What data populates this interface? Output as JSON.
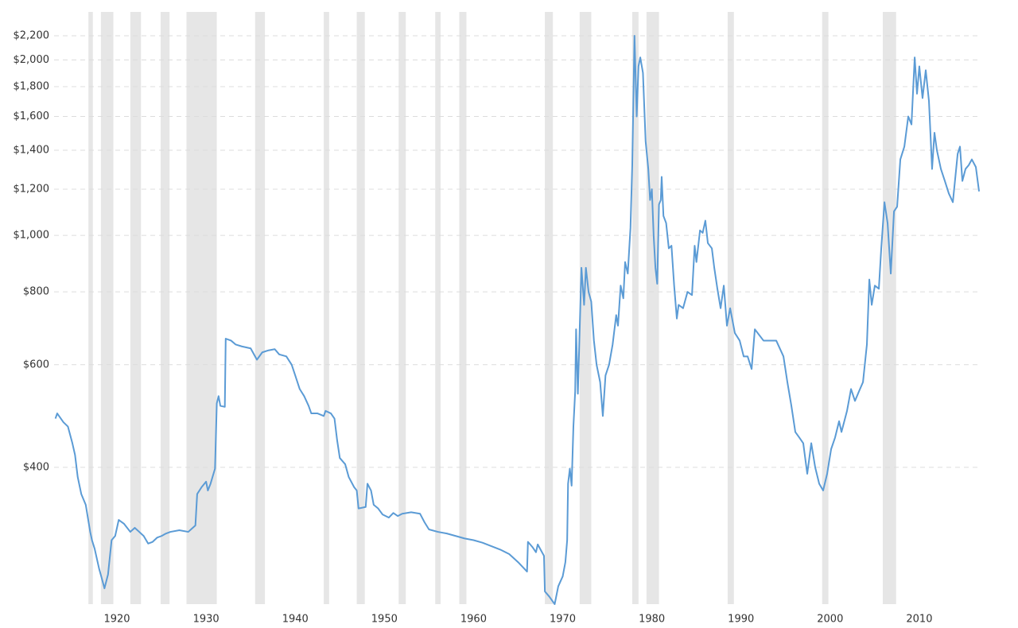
{
  "chart_data": {
    "type": "line",
    "log_scale": true,
    "grid": true,
    "series": [
      {
        "color": "#5b9bd5",
        "x": [
          1913.1,
          1913.3,
          1914.0,
          1914.5,
          1915.0,
          1915.3,
          1915.6,
          1916.0,
          1916.5,
          1917.0,
          1917.2,
          1917.5,
          1918.0,
          1918.3,
          1918.6,
          1919.0,
          1919.4,
          1919.8,
          1920.2,
          1920.8,
          1921.5,
          1922.0,
          1922.5,
          1923.0,
          1923.5,
          1924.0,
          1924.5,
          1925.0,
          1925.5,
          1926.0,
          1927.0,
          1928.0,
          1928.8,
          1929.0,
          1929.5,
          1930.0,
          1930.2,
          1930.5,
          1931.0,
          1931.2,
          1931.4,
          1931.6,
          1932.1,
          1932.2,
          1932.8,
          1933.3,
          1934.0,
          1935.0,
          1935.7,
          1936.3,
          1937.0,
          1937.7,
          1938.2,
          1939.0,
          1939.6,
          1940.0,
          1940.5,
          1941.0,
          1941.5,
          1941.8,
          1942.5,
          1943.2,
          1943.4,
          1944.0,
          1944.4,
          1944.7,
          1945.0,
          1945.6,
          1946.0,
          1946.6,
          1946.9,
          1947.1,
          1947.9,
          1948.1,
          1948.5,
          1948.8,
          1949.3,
          1949.8,
          1950.5,
          1951.0,
          1951.5,
          1952.0,
          1953.0,
          1954.0,
          1954.5,
          1955.0,
          1956.0,
          1957.0,
          1958.0,
          1959.0,
          1960.0,
          1961.0,
          1962.0,
          1963.0,
          1964.0,
          1965.0,
          1966.0,
          1966.1,
          1966.6,
          1967.0,
          1967.2,
          1967.9,
          1968.0,
          1968.5,
          1969.1,
          1969.5,
          1970.0,
          1970.3,
          1970.5,
          1970.6,
          1970.8,
          1971.0,
          1971.2,
          1971.4,
          1971.5,
          1971.7,
          1972.1,
          1972.4,
          1972.6,
          1972.9,
          1973.2,
          1973.5,
          1973.8,
          1974.2,
          1974.5,
          1974.8,
          1975.2,
          1975.6,
          1976.0,
          1976.2,
          1976.5,
          1976.8,
          1977.0,
          1977.3,
          1977.6,
          1977.8,
          1978.05,
          1978.3,
          1978.5,
          1978.7,
          1979.0,
          1979.3,
          1979.6,
          1979.8,
          1980.0,
          1980.2,
          1980.4,
          1980.6,
          1980.8,
          1981.0,
          1981.1,
          1981.3,
          1981.6,
          1981.9,
          1982.2,
          1982.5,
          1982.8,
          1983.0,
          1983.5,
          1984.0,
          1984.5,
          1984.8,
          1985.0,
          1985.4,
          1985.7,
          1986.0,
          1986.28,
          1986.73,
          1987.0,
          1987.35,
          1987.71,
          1988.07,
          1988.42,
          1988.78,
          1989.31,
          1989.85,
          1990.3,
          1990.74,
          1991.19,
          1991.55,
          1992.52,
          1993.95,
          1994.76,
          1995.2,
          1995.65,
          1996.09,
          1996.54,
          1996.98,
          1997.43,
          1997.88,
          1998.32,
          1998.77,
          1999.21,
          1999.66,
          2000.11,
          2000.55,
          2001.0,
          2001.27,
          2001.89,
          2002.34,
          2002.78,
          2003.23,
          2003.68,
          2004.12,
          2004.39,
          2004.66,
          2005.01,
          2005.46,
          2005.73,
          2006.09,
          2006.44,
          2006.8,
          2007.16,
          2007.51,
          2007.87,
          2008.32,
          2008.76,
          2009.12,
          2009.48,
          2009.74,
          2010.0,
          2010.36,
          2010.72,
          2011.08,
          2011.43,
          2011.7,
          2011.97,
          2012.42,
          2012.86,
          2013.31,
          2013.76,
          2014.3,
          2014.56,
          2014.83,
          2015.18,
          2015.54,
          2015.89,
          2016.34,
          2016.7
        ],
        "values": [
          485,
          495,
          478,
          470,
          440,
          420,
          385,
          360,
          345,
          310,
          300,
          290,
          268,
          258,
          248,
          262,
          300,
          305,
          325,
          320,
          310,
          315,
          310,
          305,
          296,
          298,
          303,
          305,
          308,
          310,
          312,
          310,
          318,
          360,
          370,
          378,
          365,
          375,
          398,
          515,
          530,
          510,
          508,
          665,
          660,
          650,
          645,
          640,
          612,
          630,
          635,
          638,
          625,
          620,
          600,
          575,
          545,
          530,
          510,
          495,
          495,
          490,
          500,
          495,
          485,
          445,
          415,
          405,
          385,
          370,
          365,
          340,
          342,
          375,
          365,
          345,
          340,
          332,
          328,
          334,
          330,
          333,
          335,
          333,
          322,
          313,
          310,
          308,
          305,
          302,
          300,
          297,
          293,
          289,
          284,
          275,
          265,
          298,
          292,
          286,
          295,
          282,
          245,
          240,
          233,
          250,
          260,
          275,
          300,
          375,
          398,
          372,
          470,
          540,
          690,
          535,
          880,
          760,
          880,
          800,
          770,
          660,
          600,
          560,
          490,
          575,
          600,
          650,
          730,
          700,
          820,
          780,
          900,
          860,
          1030,
          1320,
          2200,
          1600,
          1950,
          2020,
          1900,
          1450,
          1300,
          1150,
          1200,
          1000,
          880,
          826,
          1130,
          1150,
          1260,
          1080,
          1050,
          950,
          960,
          820,
          720,
          760,
          750,
          800,
          790,
          960,
          900,
          1020,
          1010,
          1060,
          970,
          950,
          880,
          810,
          750,
          820,
          700,
          750,
          680,
          660,
          620,
          620,
          590,
          690,
          660,
          660,
          620,
          560,
          510,
          460,
          450,
          440,
          390,
          440,
          400,
          375,
          365,
          390,
          430,
          450,
          480,
          460,
          500,
          545,
          520,
          540,
          560,
          650,
          840,
          760,
          820,
          810,
          950,
          1140,
          1050,
          860,
          1100,
          1120,
          1350,
          1420,
          1600,
          1550,
          2020,
          1750,
          1950,
          1720,
          1920,
          1700,
          1300,
          1500,
          1400,
          1300,
          1240,
          1180,
          1140,
          1380,
          1420,
          1240,
          1300,
          1320,
          1350,
          1310,
          1190
        ]
      }
    ],
    "shaded_periods": [
      [
        1916.8,
        1917.3
      ],
      [
        1918.2,
        1919.6
      ],
      [
        1921.5,
        1922.7
      ],
      [
        1924.9,
        1925.9
      ],
      [
        1927.8,
        1931.2
      ],
      [
        1935.5,
        1936.6
      ],
      [
        1943.2,
        1943.8
      ],
      [
        1946.9,
        1947.8
      ],
      [
        1951.6,
        1952.4
      ],
      [
        1955.7,
        1956.3
      ],
      [
        1958.4,
        1959.2
      ],
      [
        1968.0,
        1968.9
      ],
      [
        1971.9,
        1973.2
      ],
      [
        1977.8,
        1978.5
      ],
      [
        1979.4,
        1980.8
      ],
      [
        1988.5,
        1989.2
      ],
      [
        1999.1,
        1999.8
      ],
      [
        2005.9,
        2007.4
      ]
    ],
    "shaded_color": "#e6e6e6",
    "xlim": [
      1912.2,
      2017.5
    ],
    "xticks": [
      1920,
      1930,
      1940,
      1950,
      1960,
      1970,
      1980,
      1990,
      2000,
      2010
    ],
    "ylim": [
      233,
      2310
    ],
    "yticks": [
      {
        "value": 400,
        "label": "$400"
      },
      {
        "value": 600,
        "label": "$600"
      },
      {
        "value": 800,
        "label": "$800"
      },
      {
        "value": 1000,
        "label": "$1,000"
      },
      {
        "value": 1200,
        "label": "$1,200"
      },
      {
        "value": 1400,
        "label": "$1,400"
      },
      {
        "value": 1600,
        "label": "$1,600"
      },
      {
        "value": 1800,
        "label": "$1,800"
      },
      {
        "value": 2000,
        "label": "$2,000"
      },
      {
        "value": 2200,
        "label": "$2,200"
      }
    ]
  }
}
